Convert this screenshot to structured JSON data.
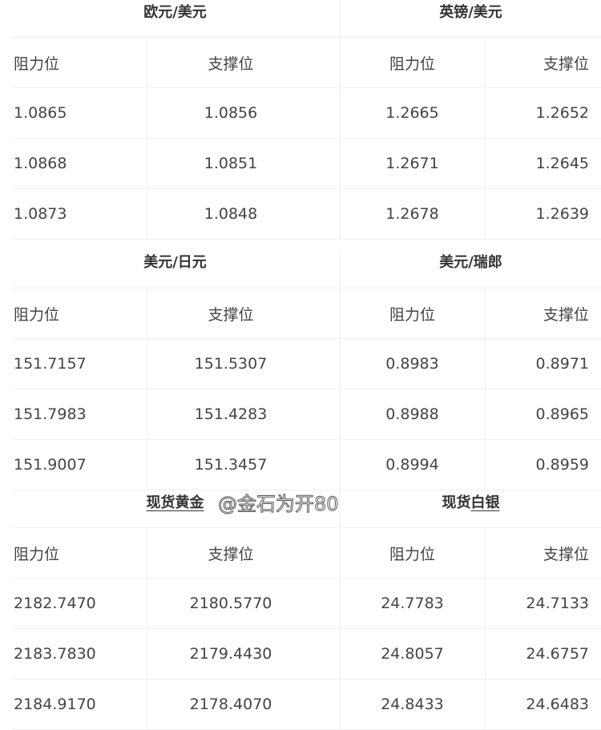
{
  "sections": [
    {
      "left": {
        "title": "欧元/美元",
        "headers": [
          "阻力位",
          "支撑位"
        ],
        "rows": [
          [
            "1.0865",
            "1.0856"
          ],
          [
            "1.0868",
            "1.0851"
          ],
          [
            "1.0873",
            "1.0848"
          ]
        ]
      },
      "right": {
        "title": "英镑/美元",
        "headers": [
          "阻力位",
          "支撑位"
        ],
        "rows": [
          [
            "1.2665",
            "1.2652"
          ],
          [
            "1.2671",
            "1.2645"
          ],
          [
            "1.2678",
            "1.2639"
          ]
        ]
      }
    },
    {
      "left": {
        "title": "美元/日元",
        "headers": [
          "阻力位",
          "支撑位"
        ],
        "rows": [
          [
            "151.7157",
            "151.5307"
          ],
          [
            "151.7983",
            "151.4283"
          ],
          [
            "151.9007",
            "151.3457"
          ]
        ]
      },
      "right": {
        "title": "美元/瑞郎",
        "headers": [
          "阻力位",
          "支撑位"
        ],
        "rows": [
          [
            "0.8983",
            "0.8971"
          ],
          [
            "0.8988",
            "0.8965"
          ],
          [
            "0.8994",
            "0.8959"
          ]
        ]
      }
    },
    {
      "left": {
        "title": "现货黄金",
        "headers": [
          "阻力位",
          "支撑位"
        ],
        "rows": [
          [
            "2182.7470",
            "2180.5770"
          ],
          [
            "2183.7830",
            "2179.4430"
          ],
          [
            "2184.9170",
            "2178.4070"
          ]
        ]
      },
      "right": {
        "title_prefix": "现货",
        "title_underlined": "白银",
        "headers": [
          "阻力位",
          "支撑位"
        ],
        "rows": [
          [
            "24.7783",
            "24.7133"
          ],
          [
            "24.8057",
            "24.6757"
          ],
          [
            "24.8433",
            "24.6483"
          ]
        ]
      }
    }
  ],
  "watermark": "@金石为开80"
}
